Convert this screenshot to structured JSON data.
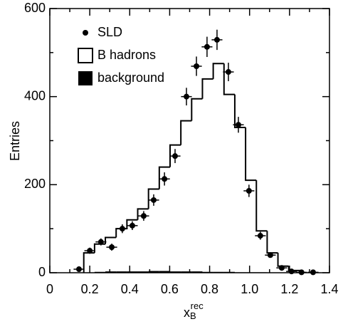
{
  "chart_data": {
    "type": "histogram",
    "ylabel": "Entries",
    "xlabel": {
      "main": "x",
      "sub": "B",
      "sup": "rec"
    },
    "xlim": [
      0,
      1.4
    ],
    "ylim": [
      0,
      600
    ],
    "xticks": [
      0,
      0.2,
      0.4,
      0.6,
      0.8,
      {
        "value": 1,
        "label": "1.0"
      },
      1.2,
      1.4
    ],
    "yticks": [
      0,
      200,
      400,
      600
    ],
    "legend": "upper left",
    "series": [
      {
        "name": "SLD",
        "type": "errorbar",
        "color": "#000000",
        "x": [
          0.146,
          0.2,
          0.256,
          0.31,
          0.363,
          0.413,
          0.47,
          0.52,
          0.574,
          0.627,
          0.684,
          0.734,
          0.787,
          0.837,
          0.894,
          0.944,
          0.997,
          1.054,
          1.104,
          1.161,
          1.21,
          1.26,
          1.318
        ],
        "values": [
          8,
          50,
          70,
          58,
          100,
          107,
          129,
          165,
          213,
          265,
          400,
          469,
          513,
          529,
          456,
          336,
          186,
          84,
          40,
          11,
          3,
          1,
          1
        ],
        "errors": [
          3,
          7,
          8,
          8,
          10,
          10,
          11,
          13,
          15,
          16,
          20,
          22,
          23,
          23,
          21,
          18,
          14,
          9,
          6,
          3,
          2,
          1,
          1
        ]
      },
      {
        "name": "B hadrons",
        "type": "step",
        "color": "#000000",
        "bins": [
          0.17,
          0.224,
          0.278,
          0.332,
          0.386,
          0.44,
          0.494,
          0.548,
          0.602,
          0.656,
          0.71,
          0.764,
          0.818,
          0.872,
          0.926,
          0.98,
          1.034,
          1.088,
          1.142,
          1.196,
          1.25
        ],
        "values": [
          45,
          65,
          80,
          100,
          120,
          145,
          190,
          240,
          290,
          345,
          395,
          440,
          475,
          405,
          330,
          210,
          95,
          45,
          15,
          5
        ]
      },
      {
        "name": "background",
        "type": "bar",
        "color": "#000000",
        "bins": [
          0.17,
          0.224,
          0.278,
          0.332,
          0.386,
          0.44,
          0.494,
          0.548,
          0.602,
          0.656,
          0.71,
          0.764,
          0.818,
          0.872,
          0.926,
          0.98,
          1.034,
          1.088,
          1.142,
          1.196,
          1.25
        ],
        "values": [
          0,
          2,
          3,
          3,
          3,
          3,
          4,
          4,
          3,
          3,
          3,
          2,
          2,
          2,
          1,
          1,
          1,
          0,
          0,
          0
        ]
      }
    ]
  }
}
